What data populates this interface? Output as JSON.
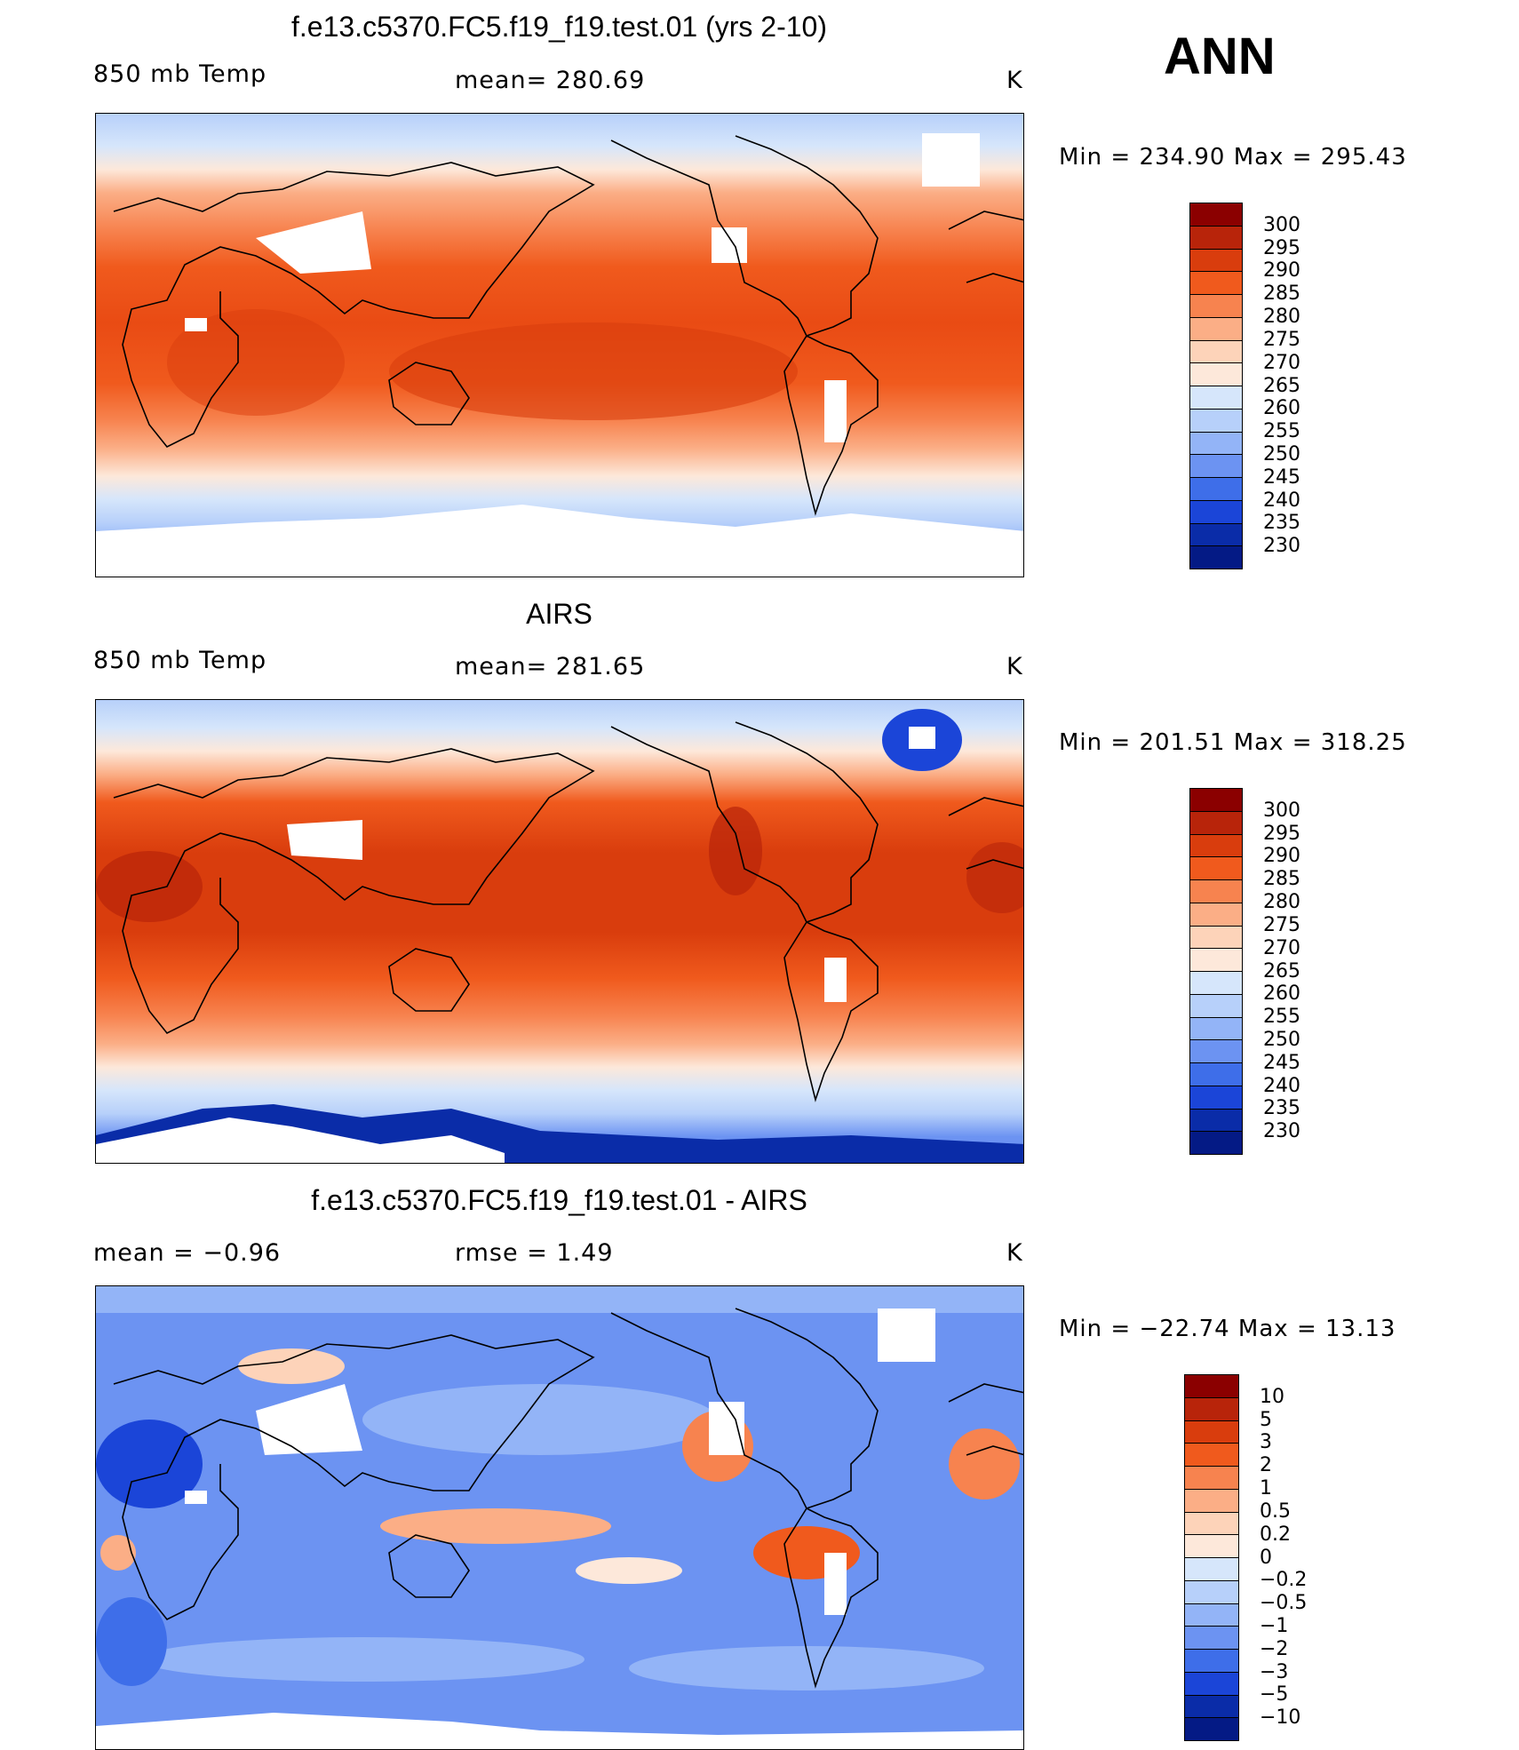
{
  "season": "ANN",
  "panels": [
    {
      "title": "f.e13.c5370.FC5.f19_f19.test.01 (yrs 2-10)",
      "left_label": "850 mb Temp",
      "center_label": "mean=  280.69",
      "right_label": "K",
      "minmax": "Min  =  234.90  Max  =  295.43",
      "colorbar": {
        "labels": [
          "300",
          "295",
          "290",
          "285",
          "280",
          "275",
          "270",
          "265",
          "260",
          "255",
          "250",
          "245",
          "240",
          "235",
          "230"
        ],
        "colors": [
          "#8b0000",
          "#b8240a",
          "#d93d0d",
          "#f05a1d",
          "#f7834f",
          "#fbae86",
          "#fdd3b9",
          "#fde8da",
          "#d6e6fb",
          "#b7d0fa",
          "#93b4f7",
          "#6c93f2",
          "#3e6ee9",
          "#1b45d8",
          "#0a2ca8",
          "#041a85"
        ]
      }
    },
    {
      "title": "AIRS",
      "left_label": "850 mb Temp",
      "center_label": "mean=  281.65",
      "right_label": "K",
      "minmax": "Min  =  201.51  Max  =  318.25",
      "colorbar": {
        "labels": [
          "300",
          "295",
          "290",
          "285",
          "280",
          "275",
          "270",
          "265",
          "260",
          "255",
          "250",
          "245",
          "240",
          "235",
          "230"
        ],
        "colors": [
          "#8b0000",
          "#b8240a",
          "#d93d0d",
          "#f05a1d",
          "#f7834f",
          "#fbae86",
          "#fdd3b9",
          "#fde8da",
          "#d6e6fb",
          "#b7d0fa",
          "#93b4f7",
          "#6c93f2",
          "#3e6ee9",
          "#1b45d8",
          "#0a2ca8",
          "#041a85"
        ]
      }
    },
    {
      "title": "f.e13.c5370.FC5.f19_f19.test.01 - AIRS",
      "left_label": "mean =    −0.96",
      "center_label": "rmse =     1.49",
      "right_label": "K",
      "minmax": "Min  = −22.74  Max  =    13.13",
      "colorbar": {
        "labels": [
          "10",
          "5",
          "3",
          "2",
          "1",
          "0.5",
          "0.2",
          "0",
          "−0.2",
          "−0.5",
          "−1",
          "−2",
          "−3",
          "−5",
          "−10"
        ],
        "colors": [
          "#8b0000",
          "#b8240a",
          "#d93d0d",
          "#f05a1d",
          "#f7834f",
          "#fbae86",
          "#fdd3b9",
          "#fde8da",
          "#d6e6fb",
          "#b7d0fa",
          "#93b4f7",
          "#6c93f2",
          "#3e6ee9",
          "#1b45d8",
          "#0a2ca8",
          "#041a85"
        ]
      }
    }
  ]
}
